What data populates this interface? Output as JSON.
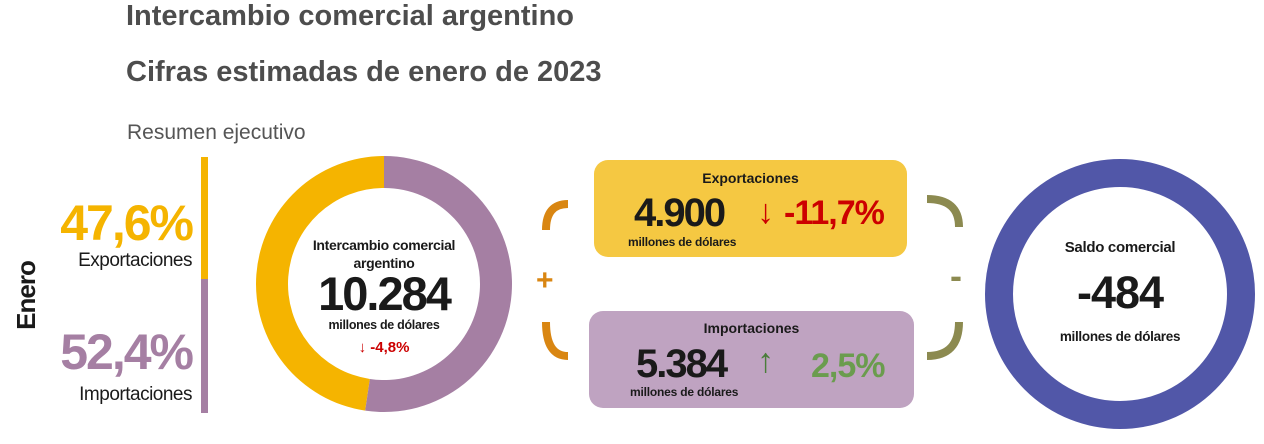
{
  "header": {
    "title": "Intercambio comercial argentino",
    "subtitle": "Cifras estimadas de enero de 2023",
    "section": "Resumen ejecutivo"
  },
  "period_label": "Enero",
  "shares": {
    "exports": {
      "value": "47,6%",
      "label": "Exportaciones"
    },
    "imports": {
      "value": "52,4%",
      "label": "Importaciones"
    }
  },
  "donut": {
    "label_line1": "Intercambio comercial",
    "label_line2": "argentino",
    "value": "10.284",
    "unit": "millones de dólares",
    "change": "↓ -4,8%"
  },
  "exports_box": {
    "title": "Exportaciones",
    "value": "4.900",
    "arrow": "↓",
    "change": "-11,7%",
    "unit": "millones de dólares"
  },
  "imports_box": {
    "title": "Importaciones",
    "value": "5.384",
    "arrow": "↑",
    "change": "2,5%",
    "unit": "millones de dólares"
  },
  "signs": {
    "plus": "+",
    "minus": "-"
  },
  "balance": {
    "label": "Saldo comercial",
    "value": "-484",
    "unit": "millones de dólares"
  },
  "colors": {
    "exports": "#f5b400",
    "imports": "#a57fa3",
    "exports_box": "#f5c842",
    "imports_box": "#bfa3c1",
    "plus_bracket": "#d98612",
    "minus_bracket": "#8c8a50",
    "balance_ring": "#5157a8",
    "decrease": "#cc0000",
    "increase": "#4a7d3a"
  },
  "chart_data": {
    "type": "pie",
    "title": "",
    "categories": [
      "Exportaciones",
      "Importaciones"
    ],
    "values": [
      4900,
      5384
    ],
    "shares_percent": [
      47.6,
      52.4
    ],
    "total": 10284,
    "unit": "millones de dólares",
    "donut": true
  }
}
